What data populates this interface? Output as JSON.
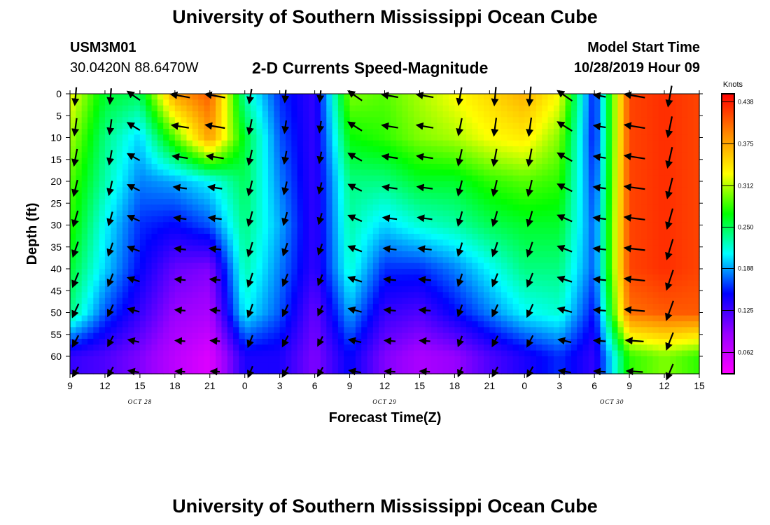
{
  "header": {
    "title": "University of Southern Mississippi Ocean Cube",
    "footer_title": "University of Southern Mississippi Ocean Cube",
    "station_id": "USM3M01",
    "coords": "30.0420N 88.6470W",
    "plot_title": "2-D Currents Speed-Magnitude",
    "start_label": "Model Start Time",
    "start_time": "10/28/2019 Hour 09"
  },
  "chart_data": {
    "type": "heatmap",
    "title": "2-D Currents Speed-Magnitude",
    "xlabel": "Forecast Time(Z)",
    "ylabel": "Depth (ft)",
    "x_hours": [
      9,
      12,
      15,
      18,
      21,
      0,
      3,
      6,
      9,
      12,
      15,
      18,
      21,
      0,
      3,
      6,
      9,
      12,
      15
    ],
    "x_tick_labels": [
      "9",
      "12",
      "15",
      "18",
      "21",
      "0",
      "3",
      "6",
      "9",
      "12",
      "15",
      "18",
      "21",
      "0",
      "3",
      "6",
      "9",
      "12",
      "15"
    ],
    "date_labels": [
      {
        "label": "OCT 28",
        "at_hours_from_start": 6
      },
      {
        "label": "OCT 29",
        "at_hours_from_start": 27
      },
      {
        "label": "OCT 30",
        "at_hours_from_start": 46.5
      }
    ],
    "y_ticks": [
      0,
      5,
      10,
      15,
      20,
      25,
      30,
      35,
      40,
      45,
      50,
      55,
      60
    ],
    "y_tick_labels": [
      "0",
      "5",
      "10",
      "15",
      "20",
      "25",
      "30",
      "35",
      "40",
      "45",
      "50",
      "55",
      "60"
    ],
    "ylim": [
      0,
      64
    ],
    "xlim_hours": [
      0,
      54
    ],
    "colorbar": {
      "unit": "Knots",
      "ticks": [
        0.062,
        0.125,
        0.188,
        0.25,
        0.312,
        0.375,
        0.438
      ],
      "tick_labels": [
        "0.062",
        "0.125",
        "0.188",
        "0.250",
        "0.312",
        "0.375",
        "0.438"
      ],
      "range": [
        0.03,
        0.45
      ],
      "colors": [
        "#ff00ff",
        "#9900ff",
        "#0000ff",
        "#00ffff",
        "#00ff00",
        "#ffff00",
        "#ff8800",
        "#ff0000"
      ]
    },
    "arrow_x_hours": [
      0,
      3,
      5,
      9,
      12,
      15,
      18,
      21,
      24,
      27,
      30,
      33,
      36,
      39,
      42,
      45,
      48,
      51
    ],
    "arrow_depths": [
      0,
      7,
      14,
      21,
      28,
      35,
      42,
      49,
      56,
      63
    ],
    "speed_grid": {
      "times_hours": [
        0,
        3,
        6,
        9,
        12,
        15,
        18,
        21,
        24,
        27,
        30,
        33,
        36,
        39,
        42,
        45,
        48,
        51,
        54
      ],
      "depths": [
        0,
        10,
        20,
        30,
        40,
        50,
        60
      ],
      "values_knots": [
        [
          0.33,
          0.26,
          0.25,
          0.38,
          0.41,
          0.23,
          0.16,
          0.13,
          0.3,
          0.29,
          0.31,
          0.33,
          0.35,
          0.37,
          0.33,
          0.15,
          0.42,
          0.43,
          0.42
        ],
        [
          0.31,
          0.24,
          0.2,
          0.29,
          0.38,
          0.26,
          0.17,
          0.13,
          0.27,
          0.28,
          0.3,
          0.31,
          0.33,
          0.34,
          0.3,
          0.15,
          0.42,
          0.43,
          0.42
        ],
        [
          0.29,
          0.23,
          0.18,
          0.19,
          0.21,
          0.25,
          0.18,
          0.13,
          0.24,
          0.24,
          0.26,
          0.26,
          0.28,
          0.29,
          0.28,
          0.16,
          0.42,
          0.43,
          0.42
        ],
        [
          0.28,
          0.21,
          0.16,
          0.15,
          0.17,
          0.24,
          0.19,
          0.13,
          0.23,
          0.2,
          0.22,
          0.23,
          0.25,
          0.26,
          0.26,
          0.17,
          0.42,
          0.43,
          0.42
        ],
        [
          0.26,
          0.2,
          0.15,
          0.11,
          0.1,
          0.23,
          0.18,
          0.13,
          0.22,
          0.16,
          0.16,
          0.18,
          0.21,
          0.24,
          0.24,
          0.17,
          0.42,
          0.43,
          0.42
        ],
        [
          0.24,
          0.17,
          0.13,
          0.09,
          0.08,
          0.21,
          0.17,
          0.11,
          0.19,
          0.13,
          0.12,
          0.15,
          0.18,
          0.21,
          0.22,
          0.15,
          0.4,
          0.41,
          0.41
        ],
        [
          0.13,
          0.12,
          0.1,
          0.07,
          0.05,
          0.14,
          0.14,
          0.1,
          0.15,
          0.1,
          0.08,
          0.09,
          0.12,
          0.14,
          0.16,
          0.13,
          0.28,
          0.3,
          0.28
        ]
      ]
    },
    "grid": false,
    "legend": "colorbar-right"
  }
}
